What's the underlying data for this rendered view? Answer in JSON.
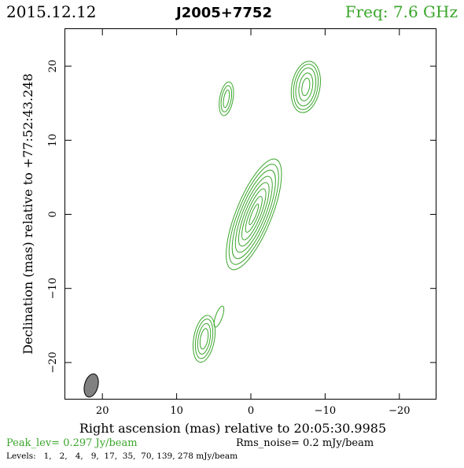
{
  "header": {
    "date": "2015.12.12",
    "source": "J2005+7752",
    "freq": "Freq: 7.6 GHz"
  },
  "footer": {
    "peak": "Peak_lev=  0.297 Jy/beam",
    "rms": "Rms_noise=  0.2 mJy/beam",
    "levels": "Levels:   1,   2,   4,   9,  17,  35,  70, 139, 278 mJy/beam"
  },
  "colors": {
    "contour": "#3aa52b",
    "freq_text": "#3aa52b",
    "peak_text": "#3aa52b",
    "beam_fill": "#808080",
    "axes": "#000000"
  },
  "chart_data": {
    "type": "contour",
    "title": "J2005+7752",
    "xlabel": "Right ascension (mas) relative to 20:05:30.9985",
    "ylabel": "Declination (mas) relative to +77:52:43.248",
    "xlim": [
      25,
      -25
    ],
    "ylim": [
      -25,
      25
    ],
    "x_ticks": [
      20,
      10,
      0,
      -10,
      -20
    ],
    "y_ticks": [
      20,
      10,
      0,
      -10,
      -20
    ],
    "x_tick_labels": [
      "20",
      "10",
      "0",
      "−10",
      "−20"
    ],
    "y_tick_labels": [
      "20",
      "10",
      "0",
      "−10",
      "−20"
    ],
    "contour_levels_mJy": [
      1,
      2,
      4,
      9,
      17,
      35,
      70,
      139,
      278
    ],
    "peak_Jy_per_beam": 0.297,
    "rms_noise_mJy_per_beam": 0.2,
    "components": [
      {
        "id": "core",
        "ra": -0.4,
        "dec": 0.0,
        "pa_deg": 22,
        "minor_axes": [
          4.8,
          4.2,
          3.6,
          3.0,
          2.4,
          1.8,
          1.2,
          0.6
        ],
        "major_axes": [
          16.0,
          14.5,
          12.8,
          11.0,
          9.2,
          7.4,
          5.2,
          3.0
        ]
      },
      {
        "id": "north-east",
        "ra": -7.4,
        "dec": 17.2,
        "pa_deg": 10,
        "minor_axes": [
          3.8,
          3.2,
          2.6,
          1.8,
          1.0
        ],
        "major_axes": [
          7.0,
          6.2,
          5.2,
          3.8,
          2.4
        ]
      },
      {
        "id": "north-small",
        "ra": 3.3,
        "dec": 15.6,
        "pa_deg": 10,
        "minor_axes": [
          1.8,
          1.3,
          0.7
        ],
        "major_axes": [
          4.6,
          3.6,
          2.4
        ]
      },
      {
        "id": "south-west",
        "ra": 6.3,
        "dec": -16.8,
        "pa_deg": 10,
        "minor_axes": [
          2.8,
          2.2,
          1.6,
          1.0
        ],
        "major_axes": [
          6.4,
          5.4,
          4.2,
          2.8
        ]
      },
      {
        "id": "south-west-tail",
        "ra": 4.3,
        "dec": -13.8,
        "pa_deg": 20,
        "minor_axes": [
          0.9
        ],
        "major_axes": [
          3.0
        ]
      }
    ],
    "beam": {
      "ra": 21.5,
      "dec": -23.1,
      "major_mas": 3.2,
      "minor_mas": 0.9,
      "pa_deg": 15
    }
  }
}
